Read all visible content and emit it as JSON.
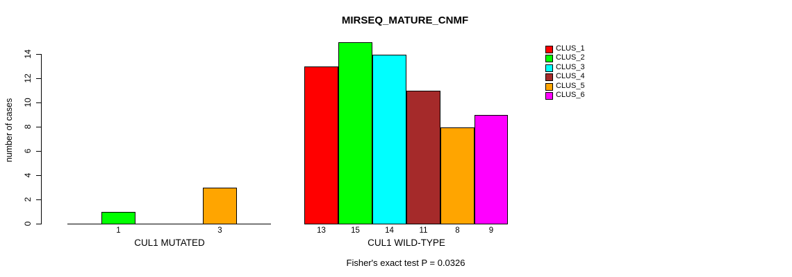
{
  "chart_data": {
    "type": "bar",
    "title": "MIRSEQ_MATURE_CNMF",
    "ylabel": "number of cases",
    "footnote": "Fisher's exact test P = 0.0326",
    "yticks": [
      0,
      2,
      4,
      6,
      8,
      10,
      12,
      14
    ],
    "ylim": [
      0,
      15
    ],
    "grid": false,
    "legend_position": "right",
    "legend": [
      {
        "label": "CLUS_1",
        "color": "#FF0000"
      },
      {
        "label": "CLUS_2",
        "color": "#00FF00"
      },
      {
        "label": "CLUS_3",
        "color": "#00FFFF"
      },
      {
        "label": "CLUS_4",
        "color": "#A52A2A"
      },
      {
        "label": "CLUS_5",
        "color": "#FFA500"
      },
      {
        "label": "CLUS_6",
        "color": "#FF00FF"
      }
    ],
    "groups": [
      {
        "label": "CUL1 MUTATED",
        "series": [
          "CLUS_1",
          "CLUS_2",
          "CLUS_3",
          "CLUS_4",
          "CLUS_5",
          "CLUS_6"
        ],
        "values": [
          0,
          1,
          0,
          0,
          3,
          0
        ]
      },
      {
        "label": "CUL1 WILD-TYPE",
        "series": [
          "CLUS_1",
          "CLUS_2",
          "CLUS_3",
          "CLUS_4",
          "CLUS_5",
          "CLUS_6"
        ],
        "values": [
          13,
          15,
          14,
          11,
          8,
          9
        ]
      }
    ]
  }
}
